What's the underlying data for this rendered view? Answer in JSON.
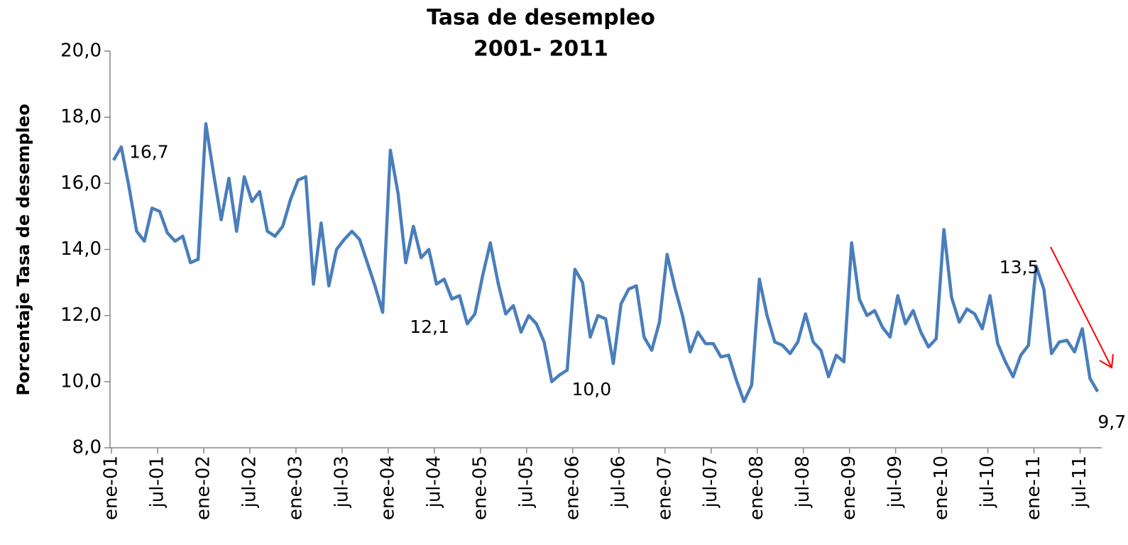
{
  "chart_data": {
    "type": "line",
    "title": "Tasa de desempleo",
    "subtitle": "2001- 2011",
    "y_label": "Porcentaje Tasa de desempleo",
    "categories": [
      "ene-01",
      null,
      null,
      null,
      null,
      null,
      "jul-01",
      null,
      null,
      null,
      null,
      null,
      "ene-02",
      null,
      null,
      null,
      null,
      null,
      "jul-02",
      null,
      null,
      null,
      null,
      null,
      "ene-03",
      null,
      null,
      null,
      null,
      null,
      "jul-03",
      null,
      null,
      null,
      null,
      null,
      "ene-04",
      null,
      null,
      null,
      null,
      null,
      "jul-04",
      null,
      null,
      null,
      null,
      null,
      "ene-05",
      null,
      null,
      null,
      null,
      null,
      "jul-05",
      null,
      null,
      null,
      null,
      null,
      "ene-06",
      null,
      null,
      null,
      null,
      null,
      "jul-06",
      null,
      null,
      null,
      null,
      null,
      "ene-07",
      null,
      null,
      null,
      null,
      null,
      "jul-07",
      null,
      null,
      null,
      null,
      null,
      "ene-08",
      null,
      null,
      null,
      null,
      null,
      "jul-08",
      null,
      null,
      null,
      null,
      null,
      "ene-09",
      null,
      null,
      null,
      null,
      null,
      "jul-09",
      null,
      null,
      null,
      null,
      null,
      "ene-10",
      null,
      null,
      null,
      null,
      null,
      "jul-10",
      null,
      null,
      null,
      null,
      null,
      "ene-11",
      null,
      null,
      null,
      null,
      null,
      "jul-11",
      null,
      null
    ],
    "series": [
      {
        "name": "Tasa de desempleo",
        "color": "#4a7ebb",
        "values": [
          16.7,
          17.1,
          15.9,
          14.55,
          14.25,
          15.25,
          15.15,
          14.5,
          14.25,
          14.4,
          13.6,
          13.7,
          17.8,
          16.3,
          14.9,
          16.15,
          14.55,
          16.2,
          15.45,
          15.75,
          14.55,
          14.4,
          14.7,
          15.5,
          16.1,
          16.2,
          12.95,
          14.8,
          12.9,
          14.0,
          14.3,
          14.55,
          14.3,
          13.6,
          12.9,
          12.1,
          17.0,
          15.7,
          13.6,
          14.7,
          13.75,
          14.0,
          12.95,
          13.1,
          12.5,
          12.6,
          11.75,
          12.05,
          13.2,
          14.2,
          13.0,
          12.05,
          12.3,
          11.5,
          12.0,
          11.75,
          11.2,
          10.0,
          10.2,
          10.35,
          13.4,
          13.0,
          11.35,
          12.0,
          11.9,
          10.55,
          12.35,
          12.8,
          12.9,
          11.35,
          10.95,
          11.8,
          13.85,
          12.85,
          12.0,
          10.9,
          11.5,
          11.15,
          11.15,
          10.75,
          10.8,
          10.05,
          9.4,
          9.9,
          13.1,
          12.0,
          11.2,
          11.1,
          10.85,
          11.2,
          12.05,
          11.2,
          10.95,
          10.15,
          10.8,
          10.6,
          14.2,
          12.5,
          12.0,
          12.15,
          11.65,
          11.35,
          12.6,
          11.75,
          12.15,
          11.5,
          11.05,
          11.3,
          14.6,
          12.55,
          11.8,
          12.2,
          12.05,
          11.6,
          12.6,
          11.15,
          10.6,
          10.15,
          10.8,
          11.1,
          13.5,
          12.8,
          10.85,
          11.2,
          11.25,
          10.9,
          11.6,
          10.1,
          9.7
        ],
        "value_labels": [
          "16,7",
          null,
          null,
          null,
          null,
          null,
          null,
          null,
          null,
          null,
          null,
          null,
          null,
          null,
          null,
          null,
          null,
          null,
          null,
          null,
          null,
          null,
          null,
          null,
          null,
          null,
          null,
          null,
          null,
          null,
          null,
          null,
          null,
          null,
          null,
          "12,1",
          null,
          null,
          null,
          null,
          null,
          null,
          null,
          null,
          null,
          null,
          null,
          null,
          null,
          null,
          null,
          null,
          null,
          null,
          null,
          null,
          null,
          "10,0",
          null,
          null,
          null,
          null,
          null,
          null,
          null,
          null,
          null,
          null,
          null,
          null,
          null,
          null,
          null,
          null,
          null,
          null,
          null,
          null,
          null,
          null,
          null,
          null,
          null,
          null,
          null,
          null,
          null,
          null,
          null,
          null,
          null,
          null,
          null,
          null,
          null,
          null,
          null,
          null,
          null,
          null,
          null,
          null,
          null,
          null,
          null,
          null,
          null,
          null,
          null,
          null,
          null,
          null,
          null,
          null,
          null,
          null,
          null,
          null,
          null,
          null,
          "13,5",
          null,
          null,
          null,
          null,
          null,
          null,
          null,
          "9,7"
        ]
      }
    ],
    "ylim": [
      8,
      20
    ],
    "yticks": [
      {
        "value": 8,
        "label": "8,0"
      },
      {
        "value": 10,
        "label": "10,0"
      },
      {
        "value": 12,
        "label": "12,0"
      },
      {
        "value": 14,
        "label": "14,0"
      },
      {
        "value": 16,
        "label": "16,0"
      },
      {
        "value": 18,
        "label": "18,0"
      },
      {
        "value": 20,
        "label": "20,0"
      }
    ],
    "grid": false
  }
}
